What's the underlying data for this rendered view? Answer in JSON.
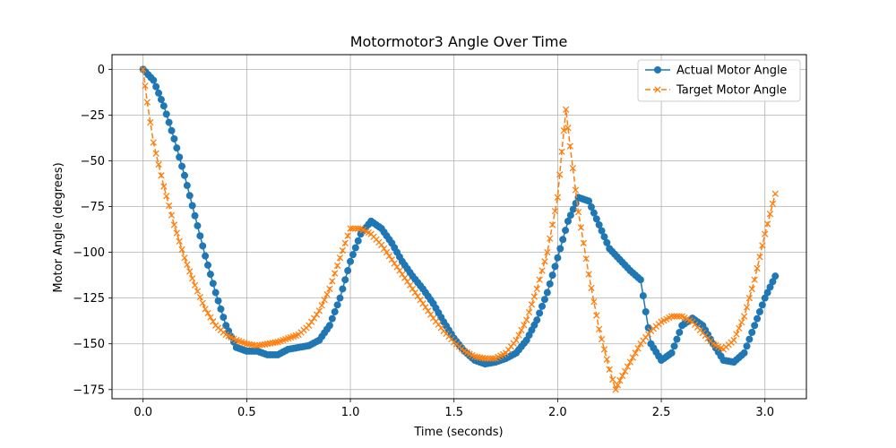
{
  "chart_data": {
    "type": "line",
    "title": "Motormotor3 Angle Over Time",
    "xlabel": "Time (seconds)",
    "ylabel": "Motor Angle (degrees)",
    "xlim": [
      -0.15,
      3.2
    ],
    "ylim": [
      -180,
      8
    ],
    "xticks": [
      0.0,
      0.5,
      1.0,
      1.5,
      2.0,
      2.5,
      3.0
    ],
    "xtick_labels": [
      "0.0",
      "0.5",
      "1.0",
      "1.5",
      "2.0",
      "2.5",
      "3.0"
    ],
    "yticks": [
      0,
      -25,
      -50,
      -75,
      -100,
      -125,
      -150,
      -175
    ],
    "ytick_labels": [
      "0",
      "−25",
      "−50",
      "−75",
      "−100",
      "−125",
      "−150",
      "−175"
    ],
    "grid": true,
    "legend_position": "top-right",
    "series": [
      {
        "name": "Actual Motor Angle",
        "color": "#1f77b4",
        "linestyle": "solid",
        "marker": "circle",
        "x": [
          0.0,
          0.05,
          0.1,
          0.15,
          0.2,
          0.25,
          0.3,
          0.35,
          0.4,
          0.45,
          0.5,
          0.55,
          0.6,
          0.65,
          0.7,
          0.75,
          0.8,
          0.85,
          0.9,
          0.95,
          1.0,
          1.05,
          1.1,
          1.15,
          1.2,
          1.25,
          1.3,
          1.35,
          1.4,
          1.45,
          1.5,
          1.55,
          1.6,
          1.65,
          1.7,
          1.75,
          1.8,
          1.85,
          1.9,
          1.95,
          2.0,
          2.05,
          2.1,
          2.15,
          2.2,
          2.25,
          2.3,
          2.35,
          2.4,
          2.45,
          2.5,
          2.55,
          2.6,
          2.65,
          2.7,
          2.75,
          2.8,
          2.85,
          2.9,
          2.95,
          3.0,
          3.05
        ],
        "y": [
          0,
          -6,
          -20,
          -38,
          -58,
          -80,
          -102,
          -122,
          -140,
          -152,
          -154,
          -154,
          -156,
          -156,
          -153,
          -152,
          -151,
          -148,
          -140,
          -125,
          -105,
          -90,
          -83,
          -87,
          -95,
          -105,
          -113,
          -120,
          -128,
          -138,
          -147,
          -154,
          -159,
          -161,
          -160,
          -158,
          -155,
          -148,
          -137,
          -122,
          -103,
          -83,
          -70,
          -72,
          -85,
          -98,
          -104,
          -110,
          -115,
          -150,
          -159,
          -155,
          -140,
          -136,
          -140,
          -150,
          -159,
          -160,
          -155,
          -140,
          -125,
          -113
        ]
      },
      {
        "name": "Target Motor Angle",
        "color": "#ff7f0e",
        "linestyle": "dashed",
        "marker": "x",
        "x": [
          0.0,
          0.02,
          0.05,
          0.1,
          0.15,
          0.2,
          0.25,
          0.3,
          0.35,
          0.4,
          0.45,
          0.5,
          0.55,
          0.6,
          0.65,
          0.7,
          0.75,
          0.8,
          0.85,
          0.9,
          0.95,
          1.0,
          1.05,
          1.1,
          1.15,
          1.2,
          1.25,
          1.3,
          1.35,
          1.4,
          1.45,
          1.5,
          1.55,
          1.6,
          1.65,
          1.7,
          1.75,
          1.8,
          1.85,
          1.9,
          1.95,
          2.0,
          2.02,
          2.04,
          2.06,
          2.1,
          2.15,
          2.2,
          2.25,
          2.28,
          2.3,
          2.35,
          2.4,
          2.45,
          2.5,
          2.55,
          2.6,
          2.65,
          2.7,
          2.75,
          2.8,
          2.85,
          2.9,
          2.95,
          3.0,
          3.05
        ],
        "y": [
          0,
          -18,
          -40,
          -64,
          -85,
          -103,
          -118,
          -131,
          -140,
          -145,
          -148,
          -150,
          -151,
          -150,
          -149,
          -147,
          -145,
          -140,
          -132,
          -120,
          -103,
          -87,
          -87,
          -90,
          -96,
          -104,
          -112,
          -120,
          -128,
          -136,
          -143,
          -149,
          -154,
          -157,
          -158,
          -158,
          -155,
          -148,
          -137,
          -120,
          -100,
          -70,
          -45,
          -22,
          -42,
          -78,
          -112,
          -142,
          -164,
          -175,
          -170,
          -160,
          -150,
          -143,
          -138,
          -135,
          -135,
          -138,
          -144,
          -150,
          -153,
          -148,
          -135,
          -115,
          -90,
          -68
        ]
      }
    ]
  }
}
